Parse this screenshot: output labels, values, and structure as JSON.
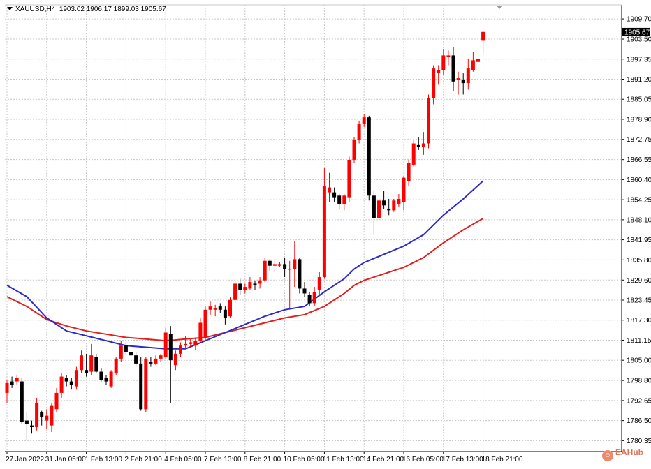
{
  "header": {
    "symbol": "XAUUSD,H4",
    "ohlc": "1903.02 1906.17 1899.03 1905.67"
  },
  "watermark": {
    "text": "EAHub",
    "icon": "eahub-logo-icon"
  },
  "colors": {
    "bull": "#ff0000",
    "bear": "#000000",
    "ma_fast": "#2b2bc8",
    "ma_slow": "#e0201c",
    "grid": "#c8c8c8",
    "price_tag_bg": "#000000"
  },
  "chart_data": {
    "type": "candlestick",
    "symbol": "XAUUSD",
    "timeframe": "H4",
    "ylim": [
      1777.0,
      1914.0
    ],
    "y_ticks": [
      "1909.70",
      "1903.50",
      "1897.35",
      "1891.20",
      "1885.05",
      "1878.90",
      "1872.75",
      "1866.55",
      "1860.40",
      "1854.25",
      "1848.10",
      "1841.95",
      "1835.80",
      "1829.60",
      "1823.45",
      "1817.30",
      "1811.15",
      "1805.00",
      "1798.80",
      "1792.65",
      "1786.50",
      "1780.35"
    ],
    "current_price": "1905.67",
    "x_ticks": [
      {
        "i": 0,
        "label": "27 Jan 2022"
      },
      {
        "i": 8,
        "label": "31 Jan 05:00"
      },
      {
        "i": 16,
        "label": "1 Feb 13:00"
      },
      {
        "i": 24,
        "label": "2 Feb 21:00"
      },
      {
        "i": 32,
        "label": "4 Feb 05:00"
      },
      {
        "i": 40,
        "label": "7 Feb 13:00"
      },
      {
        "i": 48,
        "label": "8 Feb 21:00"
      },
      {
        "i": 56,
        "label": "10 Feb 05:00"
      },
      {
        "i": 64,
        "label": "11 Feb 13:00"
      },
      {
        "i": 72,
        "label": "14 Feb 21:00"
      },
      {
        "i": 80,
        "label": "16 Feb 05:00"
      },
      {
        "i": 88,
        "label": "17 Feb 13:00"
      },
      {
        "i": 96,
        "label": "18 Feb 21:00"
      }
    ],
    "candles": [
      [
        1795.0,
        1799.0,
        1792.0,
        1798.0
      ],
      [
        1798.5,
        1800.0,
        1796.5,
        1797.5
      ],
      [
        1798.5,
        1800.5,
        1797.5,
        1799.5
      ],
      [
        1798.5,
        1799.5,
        1785.5,
        1786.0
      ],
      [
        1786.5,
        1789.0,
        1780.5,
        1785.5
      ],
      [
        1785.0,
        1786.5,
        1782.5,
        1784.5
      ],
      [
        1784.5,
        1793.5,
        1783.5,
        1792.0
      ],
      [
        1789.0,
        1789.5,
        1785.0,
        1787.5
      ],
      [
        1786.5,
        1790.0,
        1784.0,
        1788.0
      ],
      [
        1785.0,
        1792.0,
        1783.0,
        1791.0
      ],
      [
        1790.0,
        1796.5,
        1789.0,
        1795.0
      ],
      [
        1795.0,
        1801.0,
        1793.5,
        1800.0
      ],
      [
        1799.5,
        1800.5,
        1797.0,
        1798.5
      ],
      [
        1798.5,
        1799.5,
        1796.0,
        1797.5
      ],
      [
        1797.0,
        1803.0,
        1796.0,
        1802.0
      ],
      [
        1802.0,
        1808.0,
        1801.0,
        1806.5
      ],
      [
        1802.0,
        1807.0,
        1800.0,
        1801.0
      ],
      [
        1801.5,
        1810.0,
        1800.5,
        1806.5
      ],
      [
        1806.0,
        1807.0,
        1801.0,
        1801.5
      ],
      [
        1801.5,
        1802.5,
        1798.5,
        1799.0
      ],
      [
        1799.5,
        1800.5,
        1797.5,
        1798.5
      ],
      [
        1797.0,
        1802.0,
        1796.5,
        1801.5
      ],
      [
        1801.0,
        1806.0,
        1800.5,
        1805.5
      ],
      [
        1805.5,
        1811.0,
        1804.5,
        1809.5
      ],
      [
        1809.5,
        1810.5,
        1806.5,
        1807.5
      ],
      [
        1807.5,
        1808.5,
        1805.5,
        1806.5
      ],
      [
        1806.5,
        1807.5,
        1803.0,
        1804.0
      ],
      [
        1804.0,
        1806.0,
        1789.5,
        1790.0
      ],
      [
        1790.0,
        1806.0,
        1789.0,
        1805.5
      ],
      [
        1804.5,
        1806.0,
        1803.0,
        1804.0
      ],
      [
        1804.0,
        1806.5,
        1803.5,
        1805.5
      ],
      [
        1805.5,
        1807.0,
        1804.5,
        1806.5
      ],
      [
        1806.0,
        1815.0,
        1805.5,
        1813.5
      ],
      [
        1813.0,
        1815.5,
        1792.0,
        1805.0
      ],
      [
        1803.5,
        1808.0,
        1802.0,
        1807.0
      ],
      [
        1807.0,
        1810.5,
        1806.0,
        1809.5
      ],
      [
        1809.5,
        1812.5,
        1808.5,
        1810.0
      ],
      [
        1810.0,
        1811.5,
        1809.0,
        1810.5
      ],
      [
        1809.5,
        1812.0,
        1808.0,
        1811.0
      ],
      [
        1811.0,
        1818.0,
        1810.5,
        1816.5
      ],
      [
        1812.0,
        1821.5,
        1811.0,
        1820.5
      ],
      [
        1820.5,
        1823.0,
        1819.0,
        1821.5
      ],
      [
        1820.5,
        1822.0,
        1818.5,
        1821.0
      ],
      [
        1821.5,
        1822.5,
        1819.5,
        1820.5
      ],
      [
        1820.5,
        1821.5,
        1816.0,
        1818.0
      ],
      [
        1818.5,
        1824.5,
        1818.0,
        1823.5
      ],
      [
        1823.5,
        1829.5,
        1822.5,
        1828.5
      ],
      [
        1828.5,
        1830.0,
        1825.0,
        1826.5
      ],
      [
        1826.5,
        1828.5,
        1825.5,
        1827.5
      ],
      [
        1827.0,
        1830.5,
        1826.5,
        1829.0
      ],
      [
        1828.5,
        1829.5,
        1826.5,
        1828.0
      ],
      [
        1828.5,
        1830.5,
        1827.0,
        1829.5
      ],
      [
        1829.5,
        1836.5,
        1829.0,
        1835.5
      ],
      [
        1835.5,
        1836.0,
        1832.5,
        1834.0
      ],
      [
        1834.0,
        1835.5,
        1832.0,
        1834.5
      ],
      [
        1834.0,
        1835.0,
        1833.5,
        1834.5
      ],
      [
        1834.5,
        1836.5,
        1830.5,
        1833.0
      ],
      [
        1833.0,
        1835.5,
        1821.0,
        1833.0
      ],
      [
        1833.0,
        1841.5,
        1827.5,
        1836.0
      ],
      [
        1836.0,
        1836.5,
        1825.5,
        1827.0
      ],
      [
        1827.0,
        1829.0,
        1824.5,
        1825.5
      ],
      [
        1825.0,
        1826.0,
        1821.5,
        1822.5
      ],
      [
        1822.5,
        1827.5,
        1821.5,
        1826.0
      ],
      [
        1826.5,
        1832.0,
        1825.0,
        1830.5
      ],
      [
        1830.5,
        1864.0,
        1830.0,
        1858.5
      ],
      [
        1856.5,
        1862.5,
        1853.5,
        1858.0
      ],
      [
        1856.5,
        1858.0,
        1853.5,
        1855.0
      ],
      [
        1855.5,
        1856.0,
        1851.5,
        1853.0
      ],
      [
        1853.0,
        1856.0,
        1851.0,
        1855.5
      ],
      [
        1855.0,
        1867.5,
        1853.5,
        1866.5
      ],
      [
        1866.5,
        1873.5,
        1865.5,
        1872.5
      ],
      [
        1872.5,
        1878.5,
        1871.5,
        1877.5
      ],
      [
        1877.5,
        1880.5,
        1876.5,
        1879.5
      ],
      [
        1879.5,
        1880.0,
        1854.0,
        1855.5
      ],
      [
        1855.5,
        1857.0,
        1843.5,
        1848.5
      ],
      [
        1848.5,
        1855.5,
        1845.5,
        1854.0
      ],
      [
        1854.0,
        1857.0,
        1851.5,
        1852.5
      ],
      [
        1851.5,
        1854.5,
        1849.5,
        1851.0
      ],
      [
        1851.0,
        1854.5,
        1850.5,
        1854.0
      ],
      [
        1853.0,
        1856.0,
        1852.0,
        1854.5
      ],
      [
        1853.5,
        1861.5,
        1851.0,
        1861.0
      ],
      [
        1860.0,
        1866.5,
        1858.5,
        1865.5
      ],
      [
        1865.0,
        1872.5,
        1864.5,
        1871.5
      ],
      [
        1871.0,
        1873.5,
        1869.5,
        1870.5
      ],
      [
        1870.5,
        1875.0,
        1868.0,
        1871.5
      ],
      [
        1871.5,
        1886.5,
        1870.0,
        1885.5
      ],
      [
        1885.5,
        1895.5,
        1883.5,
        1894.5
      ],
      [
        1893.0,
        1895.5,
        1889.5,
        1894.0
      ],
      [
        1894.0,
        1900.5,
        1892.5,
        1898.5
      ],
      [
        1898.0,
        1900.0,
        1895.5,
        1898.5
      ],
      [
        1898.5,
        1901.0,
        1887.5,
        1890.5
      ],
      [
        1891.0,
        1893.5,
        1886.5,
        1891.5
      ],
      [
        1891.0,
        1893.0,
        1886.5,
        1890.0
      ],
      [
        1890.0,
        1897.5,
        1888.0,
        1894.5
      ],
      [
        1894.0,
        1899.5,
        1893.5,
        1897.0
      ],
      [
        1896.5,
        1899.0,
        1895.0,
        1897.5
      ],
      [
        1903.0,
        1906.2,
        1899.0,
        1905.7
      ]
    ],
    "ma_fast": [
      [
        0,
        1828.0
      ],
      [
        4,
        1824.5
      ],
      [
        8,
        1818.0
      ],
      [
        12,
        1814.0
      ],
      [
        16,
        1812.5
      ],
      [
        20,
        1811.0
      ],
      [
        24,
        1809.5
      ],
      [
        28,
        1809.0
      ],
      [
        32,
        1808.5
      ],
      [
        36,
        1808.5
      ],
      [
        40,
        1811.0
      ],
      [
        44,
        1813.5
      ],
      [
        48,
        1816.0
      ],
      [
        52,
        1818.5
      ],
      [
        56,
        1820.5
      ],
      [
        60,
        1821.5
      ],
      [
        64,
        1826.0
      ],
      [
        68,
        1830.0
      ],
      [
        70,
        1833.0
      ],
      [
        72,
        1835.0
      ],
      [
        76,
        1837.5
      ],
      [
        80,
        1840.0
      ],
      [
        84,
        1843.5
      ],
      [
        88,
        1849.5
      ],
      [
        92,
        1854.5
      ],
      [
        96,
        1860.0
      ]
    ],
    "ma_slow": [
      [
        0,
        1824.5
      ],
      [
        4,
        1821.5
      ],
      [
        8,
        1817.5
      ],
      [
        12,
        1815.5
      ],
      [
        16,
        1814.0
      ],
      [
        20,
        1813.0
      ],
      [
        24,
        1812.0
      ],
      [
        28,
        1811.5
      ],
      [
        32,
        1811.0
      ],
      [
        36,
        1811.5
      ],
      [
        40,
        1812.0
      ],
      [
        44,
        1813.5
      ],
      [
        48,
        1815.0
      ],
      [
        52,
        1816.5
      ],
      [
        56,
        1818.0
      ],
      [
        60,
        1819.0
      ],
      [
        64,
        1821.5
      ],
      [
        68,
        1825.5
      ],
      [
        70,
        1828.0
      ],
      [
        72,
        1829.5
      ],
      [
        76,
        1831.5
      ],
      [
        80,
        1833.5
      ],
      [
        84,
        1836.5
      ],
      [
        88,
        1841.0
      ],
      [
        92,
        1845.0
      ],
      [
        96,
        1848.5
      ]
    ]
  }
}
